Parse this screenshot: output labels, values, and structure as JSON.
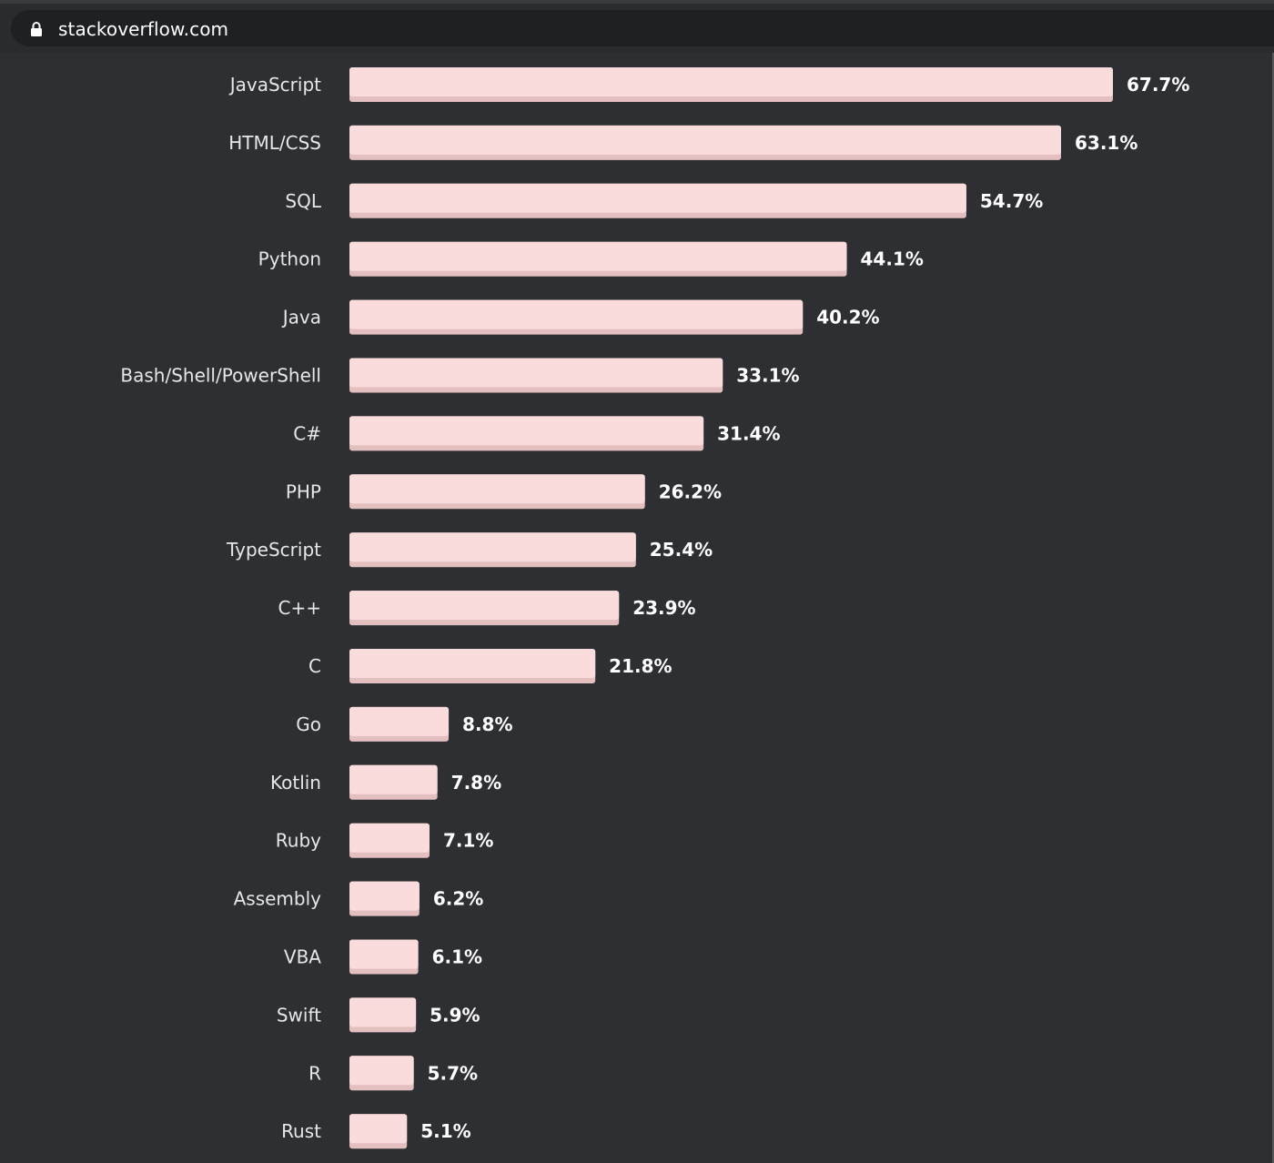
{
  "browser": {
    "url": "stackoverflow.com",
    "lock_icon": "lock-icon"
  },
  "colors": {
    "background": "#2d2f33",
    "bar_fill": "#fbdcdc",
    "bar_shadow": "#e3bfc0",
    "label_text": "#e6e7e9",
    "value_text": "#ffffff"
  },
  "chart_data": {
    "type": "bar",
    "orientation": "horizontal",
    "categories": [
      "JavaScript",
      "HTML/CSS",
      "SQL",
      "Python",
      "Java",
      "Bash/Shell/PowerShell",
      "C#",
      "PHP",
      "TypeScript",
      "C++",
      "C",
      "Go",
      "Kotlin",
      "Ruby",
      "Assembly",
      "VBA",
      "Swift",
      "R",
      "Rust"
    ],
    "values": [
      67.7,
      63.1,
      54.7,
      44.1,
      40.2,
      33.1,
      31.4,
      26.2,
      25.4,
      23.9,
      21.8,
      8.8,
      7.8,
      7.1,
      6.2,
      6.1,
      5.9,
      5.7,
      5.1
    ],
    "value_labels": [
      "67.7%",
      "63.1%",
      "54.7%",
      "44.1%",
      "40.2%",
      "33.1%",
      "31.4%",
      "26.2%",
      "25.4%",
      "23.9%",
      "21.8%",
      "8.8%",
      "7.8%",
      "7.1%",
      "6.2%",
      "6.1%",
      "5.9%",
      "5.7%",
      "5.1%"
    ],
    "xlim": [
      0,
      67.7
    ],
    "grid": false,
    "legend": "none"
  }
}
